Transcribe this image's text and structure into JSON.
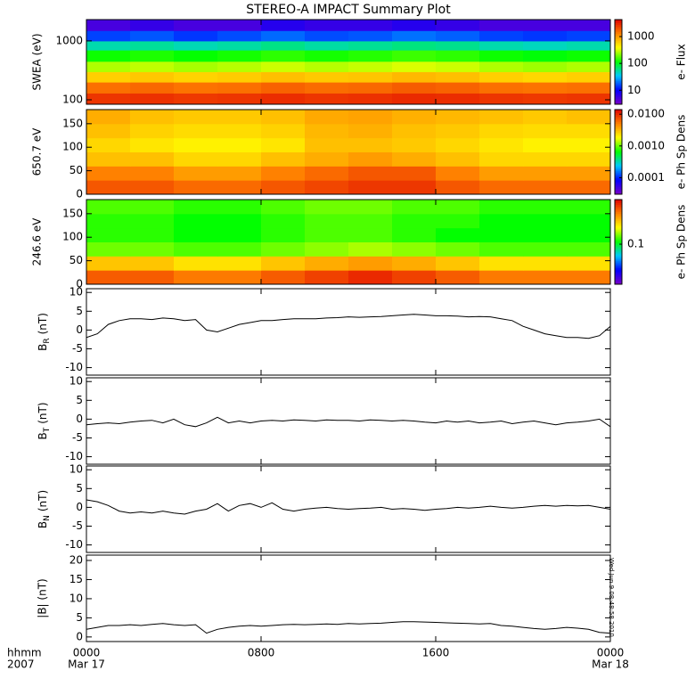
{
  "title": "STEREO-A IMPACT Summary Plot",
  "timestamp": "Wed Jun 9 08:48:58 2010",
  "x_axis": {
    "xlim": [
      0,
      24
    ],
    "xticks": [
      {
        "value": 0,
        "label": "0000"
      },
      {
        "value": 8,
        "label": "0800"
      },
      {
        "value": 16,
        "label": "1600"
      },
      {
        "value": 24,
        "label": "0000"
      }
    ],
    "dates": [
      {
        "value": 0,
        "label": "Mar 17"
      },
      {
        "value": 24,
        "label": "Mar 18"
      }
    ],
    "label": [
      "hhmm",
      "2007"
    ]
  },
  "chart_data": [
    {
      "type": "heatmap",
      "ylabel": "SWEA (eV)",
      "ylog": true,
      "ylim": [
        84,
        2300
      ],
      "yticks": [
        100,
        1000
      ],
      "clim": [
        3,
        4300
      ],
      "clog": true,
      "cticks": [
        10,
        100,
        1000
      ],
      "clabel": "e- Flux",
      "colormap": [
        "#7a00c8",
        "#0000ff",
        "#00c8ff",
        "#00ff00",
        "#ffff00",
        "#ff8000",
        "#e00000"
      ],
      "x": [
        0,
        2,
        4,
        6,
        8,
        10,
        12,
        14,
        16,
        18,
        20,
        22,
        24
      ],
      "y": [
        84,
        130,
        200,
        300,
        450,
        700,
        1000,
        1500,
        2300
      ],
      "z": [
        [
          2600,
          2700,
          2500,
          2600,
          2800,
          2600,
          2700,
          2900,
          2800,
          2600,
          2500,
          2600
        ],
        [
          1500,
          1600,
          1450,
          1500,
          1700,
          1550,
          1600,
          1800,
          1700,
          1500,
          1450,
          1500
        ],
        [
          600,
          650,
          580,
          620,
          700,
          640,
          660,
          750,
          700,
          600,
          560,
          600
        ],
        [
          260,
          280,
          250,
          270,
          300,
          270,
          290,
          320,
          300,
          260,
          240,
          260
        ],
        [
          120,
          130,
          115,
          125,
          140,
          125,
          135,
          150,
          140,
          120,
          110,
          120
        ],
        [
          50,
          55,
          48,
          52,
          60,
          52,
          56,
          62,
          58,
          50,
          46,
          50
        ],
        [
          15,
          17,
          14,
          16,
          19,
          16,
          17,
          20,
          18,
          15,
          14,
          15
        ],
        [
          5,
          6,
          5,
          5,
          7,
          6,
          6,
          7,
          6,
          5,
          5,
          5
        ]
      ]
    },
    {
      "type": "heatmap",
      "ylabel": "650.7 eV",
      "ylog": false,
      "ylim": [
        0,
        180
      ],
      "yticks": [
        0,
        50,
        100,
        150
      ],
      "clim": [
        3e-05,
        0.014
      ],
      "clog": true,
      "cticks": [
        0.0001,
        {
          "value": 0.001,
          "label": "0.0010"
        },
        {
          "value": 0.01,
          "label": "0.0100"
        }
      ],
      "clabel": "e- Ph Sp Dens",
      "colormap": [
        "#7a00c8",
        "#0000ff",
        "#00c8ff",
        "#00ff00",
        "#ffff00",
        "#ff8000",
        "#e00000"
      ],
      "x": [
        0,
        2,
        4,
        6,
        8,
        10,
        12,
        14,
        16,
        18,
        20,
        22,
        24
      ],
      "y": [
        0,
        30,
        60,
        90,
        120,
        150,
        180
      ],
      "z": [
        [
          0.007,
          0.007,
          0.006,
          0.006,
          0.007,
          0.008,
          0.009,
          0.009,
          0.007,
          0.006,
          0.006,
          0.006
        ],
        [
          0.005,
          0.005,
          0.004,
          0.004,
          0.005,
          0.006,
          0.007,
          0.007,
          0.005,
          0.004,
          0.004,
          0.004
        ],
        [
          0.003,
          0.003,
          0.0025,
          0.0025,
          0.003,
          0.0035,
          0.004,
          0.0035,
          0.003,
          0.0025,
          0.0025,
          0.0025
        ],
        [
          0.0025,
          0.0022,
          0.002,
          0.002,
          0.0022,
          0.003,
          0.003,
          0.0028,
          0.0025,
          0.0022,
          0.002,
          0.002
        ],
        [
          0.003,
          0.0026,
          0.0024,
          0.0024,
          0.0026,
          0.0032,
          0.0034,
          0.003,
          0.0028,
          0.0025,
          0.0024,
          0.0024
        ],
        [
          0.0035,
          0.003,
          0.0028,
          0.0028,
          0.003,
          0.0036,
          0.0038,
          0.0034,
          0.0032,
          0.003,
          0.0028,
          0.003
        ]
      ]
    },
    {
      "type": "heatmap",
      "ylabel": "246.6 eV",
      "ylog": false,
      "ylim": [
        0,
        180
      ],
      "yticks": [
        0,
        50,
        100,
        150
      ],
      "clim": [
        0.02,
        0.6
      ],
      "clog": true,
      "cticks": [
        0.1
      ],
      "clabel": "e- Ph Sp Dens",
      "colormap": [
        "#7a00c8",
        "#0000ff",
        "#00c8ff",
        "#00ff00",
        "#ffff00",
        "#ff8000",
        "#e00000"
      ],
      "x": [
        0,
        2,
        4,
        6,
        8,
        10,
        12,
        14,
        16,
        18,
        20,
        22,
        24
      ],
      "y": [
        0,
        30,
        60,
        90,
        120,
        150,
        180
      ],
      "z": [
        [
          0.4,
          0.4,
          0.35,
          0.35,
          0.4,
          0.45,
          0.5,
          0.45,
          0.4,
          0.35,
          0.35,
          0.35
        ],
        [
          0.25,
          0.25,
          0.22,
          0.22,
          0.25,
          0.28,
          0.3,
          0.28,
          0.25,
          0.22,
          0.22,
          0.22
        ],
        [
          0.14,
          0.14,
          0.13,
          0.13,
          0.14,
          0.15,
          0.16,
          0.15,
          0.14,
          0.13,
          0.13,
          0.13
        ],
        [
          0.12,
          0.12,
          0.11,
          0.11,
          0.12,
          0.13,
          0.13,
          0.12,
          0.11,
          0.11,
          0.11,
          0.11
        ],
        [
          0.12,
          0.12,
          0.11,
          0.11,
          0.12,
          0.13,
          0.13,
          0.12,
          0.12,
          0.11,
          0.11,
          0.11
        ],
        [
          0.13,
          0.13,
          0.12,
          0.12,
          0.13,
          0.14,
          0.14,
          0.13,
          0.13,
          0.12,
          0.12,
          0.12
        ]
      ]
    },
    {
      "type": "line",
      "ylabel": {
        "main": "B",
        "sub": "R",
        "unit": "(nT)"
      },
      "ylim": [
        -12,
        11
      ],
      "yticks": [
        -10,
        -5,
        0,
        5,
        10
      ],
      "color": "#000000",
      "x": [
        0,
        0.5,
        1,
        1.5,
        2,
        2.5,
        3,
        3.5,
        4,
        4.5,
        5,
        5.5,
        6,
        6.5,
        7,
        7.5,
        8,
        8.5,
        9,
        9.5,
        10,
        10.5,
        11,
        11.5,
        12,
        12.5,
        13,
        13.5,
        14,
        14.5,
        15,
        15.5,
        16,
        16.5,
        17,
        17.5,
        18,
        18.5,
        19,
        19.5,
        20,
        20.5,
        21,
        21.5,
        22,
        22.5,
        23,
        23.5,
        24
      ],
      "values": [
        -2,
        -1,
        1.5,
        2.5,
        3,
        3,
        2.8,
        3.2,
        3,
        2.5,
        2.8,
        0,
        -0.5,
        0.5,
        1.5,
        2,
        2.5,
        2.5,
        2.8,
        3,
        3,
        3,
        3.2,
        3.3,
        3.5,
        3.4,
        3.5,
        3.6,
        3.8,
        4,
        4.2,
        4,
        3.8,
        3.8,
        3.7,
        3.5,
        3.6,
        3.5,
        3,
        2.5,
        1,
        0,
        -1,
        -1.5,
        -2,
        -2,
        -2.2,
        -1.5,
        1
      ]
    },
    {
      "type": "line",
      "ylabel": {
        "main": "B",
        "sub": "T",
        "unit": "(nT)"
      },
      "ylim": [
        -12,
        11
      ],
      "yticks": [
        -10,
        -5,
        0,
        5,
        10
      ],
      "color": "#000000",
      "x": [
        0,
        0.5,
        1,
        1.5,
        2,
        2.5,
        3,
        3.5,
        4,
        4.5,
        5,
        5.5,
        6,
        6.5,
        7,
        7.5,
        8,
        8.5,
        9,
        9.5,
        10,
        10.5,
        11,
        11.5,
        12,
        12.5,
        13,
        13.5,
        14,
        14.5,
        15,
        15.5,
        16,
        16.5,
        17,
        17.5,
        18,
        18.5,
        19,
        19.5,
        20,
        20.5,
        21,
        21.5,
        22,
        22.5,
        23,
        23.5,
        24
      ],
      "values": [
        -1.5,
        -1.2,
        -1,
        -1.2,
        -0.8,
        -0.5,
        -0.3,
        -1,
        0,
        -1.5,
        -2,
        -1,
        0.5,
        -1,
        -0.5,
        -1,
        -0.5,
        -0.3,
        -0.5,
        -0.2,
        -0.3,
        -0.5,
        -0.2,
        -0.3,
        -0.3,
        -0.5,
        -0.2,
        -0.3,
        -0.5,
        -0.3,
        -0.5,
        -0.8,
        -1,
        -0.5,
        -0.8,
        -0.5,
        -1,
        -0.8,
        -0.5,
        -1.2,
        -0.8,
        -0.5,
        -1,
        -1.5,
        -1,
        -0.8,
        -0.5,
        0,
        -2
      ]
    },
    {
      "type": "line",
      "ylabel": {
        "main": "B",
        "sub": "N",
        "unit": "(nT)"
      },
      "ylim": [
        -12,
        11
      ],
      "yticks": [
        -10,
        -5,
        0,
        5,
        10
      ],
      "color": "#000000",
      "x": [
        0,
        0.5,
        1,
        1.5,
        2,
        2.5,
        3,
        3.5,
        4,
        4.5,
        5,
        5.5,
        6,
        6.5,
        7,
        7.5,
        8,
        8.5,
        9,
        9.5,
        10,
        10.5,
        11,
        11.5,
        12,
        12.5,
        13,
        13.5,
        14,
        14.5,
        15,
        15.5,
        16,
        16.5,
        17,
        17.5,
        18,
        18.5,
        19,
        19.5,
        20,
        20.5,
        21,
        21.5,
        22,
        22.5,
        23,
        23.5,
        24
      ],
      "values": [
        2,
        1.5,
        0.5,
        -1,
        -1.5,
        -1.2,
        -1.5,
        -1,
        -1.5,
        -1.8,
        -1,
        -0.5,
        1,
        -1,
        0.5,
        1,
        0,
        1.2,
        -0.5,
        -1,
        -0.5,
        -0.2,
        0,
        -0.3,
        -0.5,
        -0.3,
        -0.2,
        0,
        -0.5,
        -0.3,
        -0.5,
        -0.8,
        -0.5,
        -0.3,
        0,
        -0.2,
        0,
        0.3,
        0,
        -0.2,
        0,
        0.3,
        0.5,
        0.3,
        0.5,
        0.4,
        0.5,
        0,
        -0.5
      ]
    },
    {
      "type": "line",
      "ylabel": "|B| (nT)",
      "ylim": [
        -1.2,
        21.4
      ],
      "yticks": [
        0,
        5,
        10,
        15,
        20
      ],
      "color": "#000000",
      "x": [
        0,
        0.5,
        1,
        1.5,
        2,
        2.5,
        3,
        3.5,
        4,
        4.5,
        5,
        5.5,
        6,
        6.5,
        7,
        7.5,
        8,
        8.5,
        9,
        9.5,
        10,
        10.5,
        11,
        11.5,
        12,
        12.5,
        13,
        13.5,
        14,
        14.5,
        15,
        15.5,
        16,
        16.5,
        17,
        17.5,
        18,
        18.5,
        19,
        19.5,
        20,
        20.5,
        21,
        21.5,
        22,
        22.5,
        23,
        23.5,
        24
      ],
      "values": [
        2,
        2.5,
        3,
        3,
        3.2,
        3,
        3.3,
        3.5,
        3.2,
        3,
        3.2,
        1,
        2,
        2.5,
        2.8,
        3,
        2.8,
        3,
        3.2,
        3.3,
        3.2,
        3.3,
        3.4,
        3.3,
        3.5,
        3.4,
        3.5,
        3.6,
        3.8,
        4,
        4,
        3.9,
        3.8,
        3.7,
        3.6,
        3.5,
        3.4,
        3.5,
        3,
        2.8,
        2.5,
        2.2,
        2,
        2.2,
        2.5,
        2.3,
        2,
        1.2,
        1
      ]
    }
  ]
}
